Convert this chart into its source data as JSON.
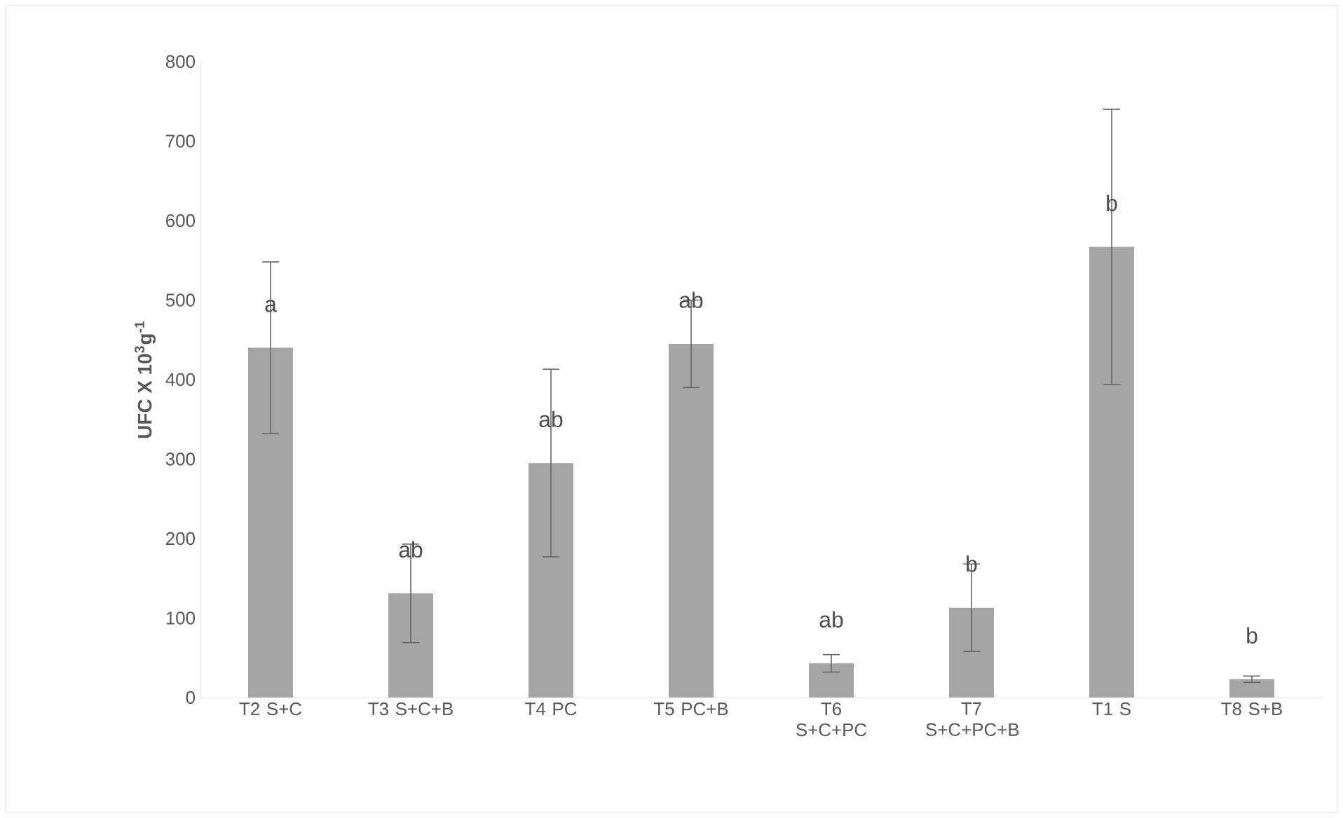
{
  "chart_data": {
    "type": "bar",
    "ylabel": "UFC X 10$^{3}$g$^{-1}$",
    "categories": [
      "T2 S+C",
      "T3 S+C+B",
      "T4 PC",
      "T5 PC+B",
      "T6 S+C+PC",
      "T7 S+C+PC+B",
      "T1 S",
      "T8 S+B"
    ],
    "values": [
      440,
      131,
      295,
      445,
      43,
      113,
      567,
      23
    ],
    "errors": [
      108,
      62,
      118,
      55,
      11,
      55,
      173,
      4
    ],
    "color": "#a5a5a5",
    "ylim": [
      0,
      800
    ],
    "yticks": [
      0,
      100,
      200,
      300,
      400,
      500,
      600,
      700,
      800
    ],
    "grid": false,
    "annotations": [
      "a",
      "ab",
      "ab",
      "ab",
      "ab",
      "b",
      "b",
      "b"
    ]
  }
}
